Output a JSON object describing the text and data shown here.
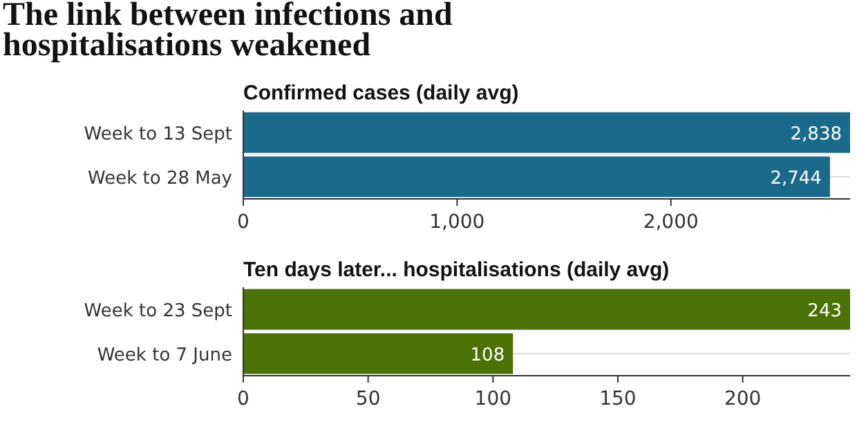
{
  "chart_data": [
    {
      "type": "bar",
      "orientation": "horizontal",
      "title": "The link between infections and hospitalisations weakened",
      "subtitle": "Confirmed cases (daily avg)",
      "categories": [
        "Week to 13 Sept",
        "Week to 28 May"
      ],
      "values": [
        2838,
        2744
      ],
      "value_labels": [
        "2,838",
        "2,744"
      ],
      "color": "#1b6a8c",
      "xlim": [
        0,
        2838
      ],
      "xticks": [
        0,
        {
          "value": 1000,
          "label": "1,000"
        },
        {
          "value": 2000,
          "label": "2,000"
        }
      ],
      "grid": "y"
    },
    {
      "type": "bar",
      "orientation": "horizontal",
      "subtitle": "Ten days later... hospitalisations (daily avg)",
      "categories": [
        "Week to 23 Sept",
        "Week to 7 June"
      ],
      "values": [
        243,
        108
      ],
      "color": "#4a7206",
      "xlim": [
        0,
        243
      ],
      "xticks": [
        0,
        50,
        100,
        150,
        200
      ],
      "data_labels": true,
      "grid": "y"
    }
  ]
}
